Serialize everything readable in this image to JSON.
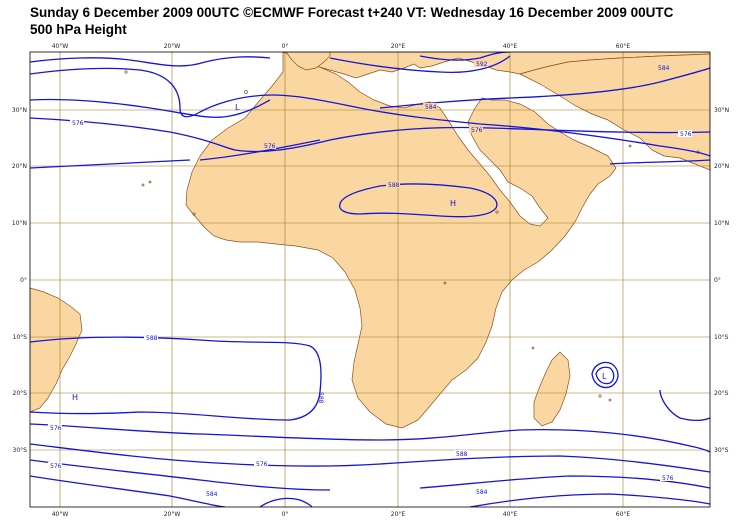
{
  "header": {
    "title_line1": "Sunday 6 December 2009 00UTC ©ECMWF Forecast t+240 VT: Wednesday 16 December 2009 00UTC",
    "title_line2": "500 hPa Height"
  },
  "axes": {
    "top_lon": [
      "40°W",
      "20°W",
      "0°",
      "20°E",
      "40°E",
      "60°E"
    ],
    "bottom_lon": [
      "40°W",
      "20°W",
      "0°",
      "20°E",
      "40°E",
      "60°E"
    ],
    "left_lat": [
      "30°N",
      "20°N",
      "10°N",
      "0°",
      "10°S",
      "20°S",
      "30°S"
    ],
    "right_lat": [
      "30°N",
      "20°N",
      "10°N",
      "0°",
      "10°S",
      "20°S",
      "30°S"
    ]
  },
  "contour_labels": [
    "576",
    "576",
    "588",
    "584",
    "576",
    "576",
    "584",
    "588",
    "588",
    "576",
    "576",
    "584",
    "576",
    "588",
    "576",
    "584",
    "592"
  ],
  "centers": [
    "L",
    "H",
    "H",
    "L"
  ],
  "colors": {
    "land": "#fad7a0",
    "contour": "#1414dc",
    "grid": "#a0781e",
    "coast": "#8c501e"
  }
}
